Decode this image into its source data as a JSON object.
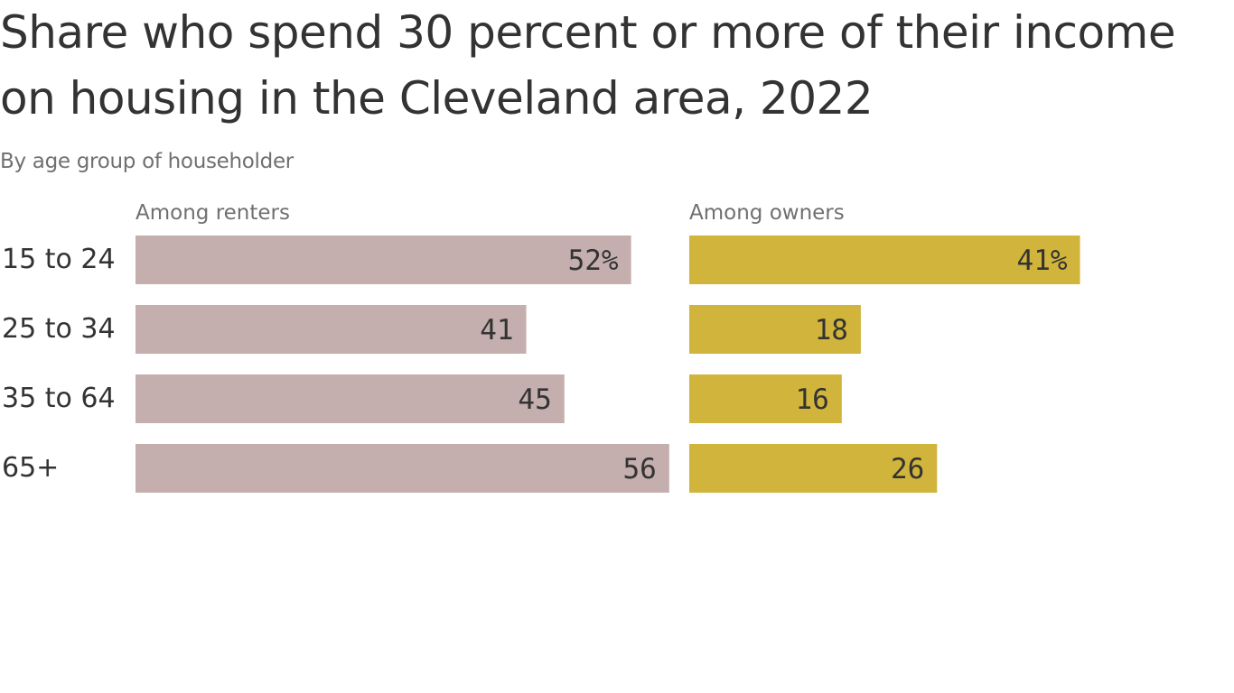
{
  "title": "Share who spend 30 percent or more of their income on housing in the Cleveland area, 2022",
  "subtitle": "By age group of householder",
  "chart_data": {
    "type": "bar",
    "orientation": "horizontal",
    "categories": [
      "15 to 24",
      "25 to 34",
      "35 to 64",
      "65+"
    ],
    "series": [
      {
        "name": "Among renters",
        "values": [
          52,
          41,
          45,
          56
        ],
        "labels": [
          "52%",
          "41",
          "45",
          "56"
        ],
        "color": "#c4aeae"
      },
      {
        "name": "Among owners",
        "values": [
          41,
          18,
          16,
          26
        ],
        "labels": [
          "41%",
          "18",
          "16",
          "26"
        ],
        "color": "#d1b43b"
      }
    ],
    "title": "Share who spend 30 percent or more of their income on housing in the Cleveland area, 2022",
    "subtitle": "By age group of householder",
    "xlim": [
      0,
      100
    ],
    "grid": false,
    "legend": "none",
    "unit": "%"
  }
}
